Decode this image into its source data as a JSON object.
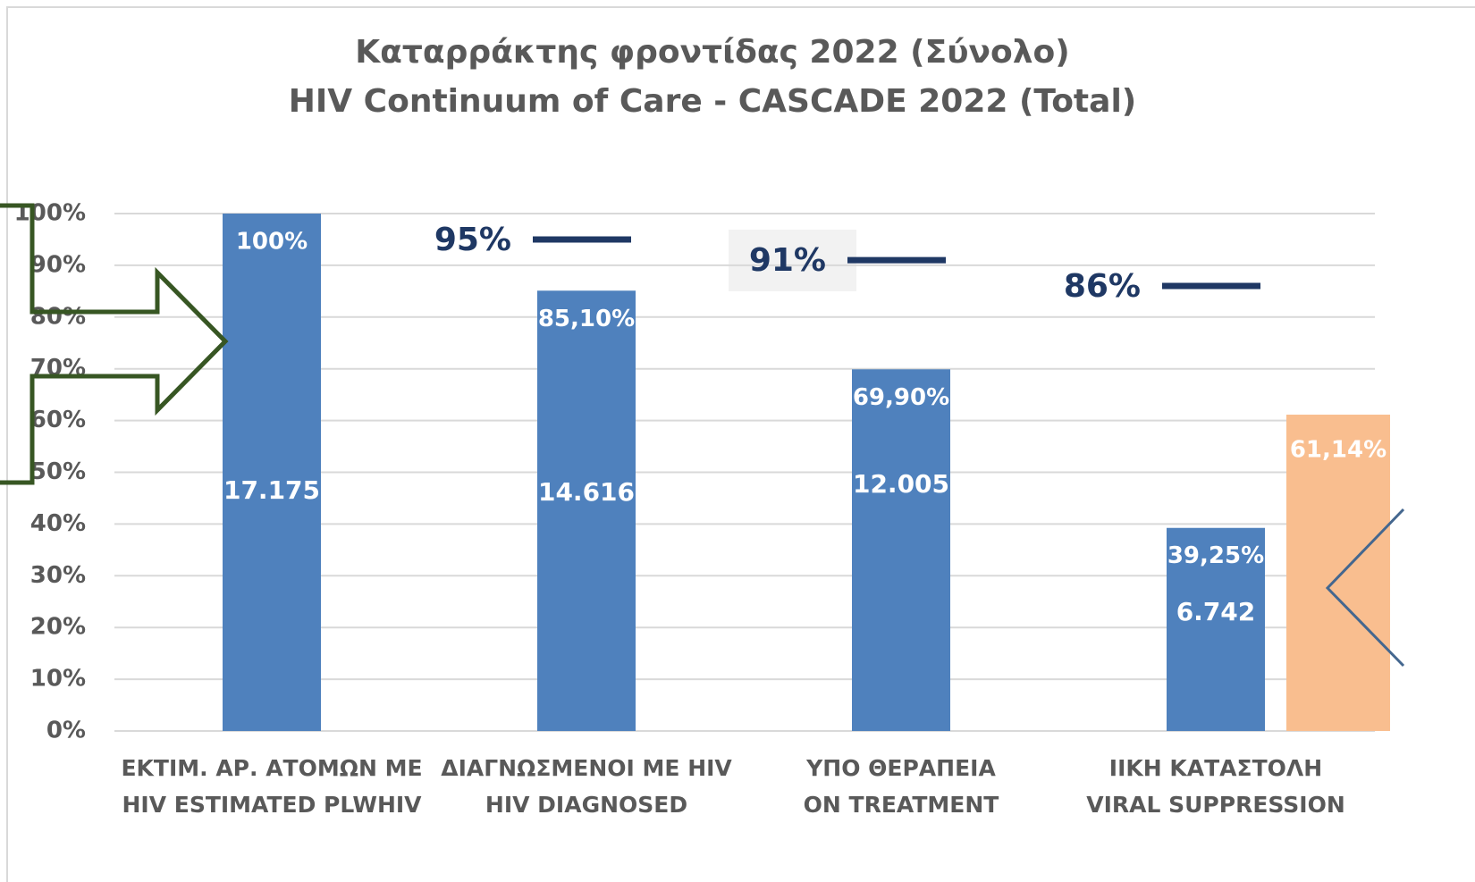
{
  "chart_data": {
    "type": "bar",
    "title": [
      "Καταρράκτης φροντίδας 2022 (Σύνολο)",
      "HIV Continuum of Care - CASCADE 2022 (Total)"
    ],
    "categories": [
      [
        "ΕΚΤΙΜ. ΑΡ. ΑΤΟΜΩΝ ΜΕ",
        "HIV ESTIMATED PLWHIV"
      ],
      [
        "ΔΙΑΓΝΩΣΜΕΝΟΙ ΜΕ HIV",
        "HIV DIAGNOSED"
      ],
      [
        "ΥΠΟ ΘΕΡΑΠΕΙΑ",
        "ON TREATMENT"
      ],
      [
        "ΙΙΚΗ ΚΑΤΑΣΤΟΛΗ",
        "VIRAL SUPPRESSION"
      ]
    ],
    "series": [
      {
        "color": "#4f81bd",
        "values": [
          100,
          85.1,
          69.9,
          39.25
        ],
        "value_labels": [
          "100%",
          "85,10%",
          "69,90%",
          "39,25%"
        ]
      },
      {
        "color": "#f9be8f",
        "values": [
          null,
          null,
          null,
          61.14
        ],
        "value_labels": [
          null,
          null,
          null,
          "61,14%"
        ]
      }
    ],
    "counts": [
      "17.175",
      "14.616",
      "12.005",
      "6.742"
    ],
    "targets": [
      null,
      95,
      91,
      86
    ],
    "target_labels": [
      null,
      "95%",
      "91%",
      "86%"
    ],
    "target_color": "#1f3864",
    "ylim": [
      0,
      100
    ],
    "yticks": [
      {
        "value": 0,
        "label": "0%"
      },
      {
        "value": 10,
        "label": "10%"
      },
      {
        "value": 20,
        "label": "20%"
      },
      {
        "value": 30,
        "label": "30%"
      },
      {
        "value": 40,
        "label": "40%"
      },
      {
        "value": 50,
        "label": "50%"
      },
      {
        "value": 60,
        "label": "60%"
      },
      {
        "value": 70,
        "label": "70%"
      },
      {
        "value": 80,
        "label": "80%"
      },
      {
        "value": 90,
        "label": "90%"
      },
      {
        "value": 100,
        "label": "100%"
      }
    ],
    "grid": true
  }
}
